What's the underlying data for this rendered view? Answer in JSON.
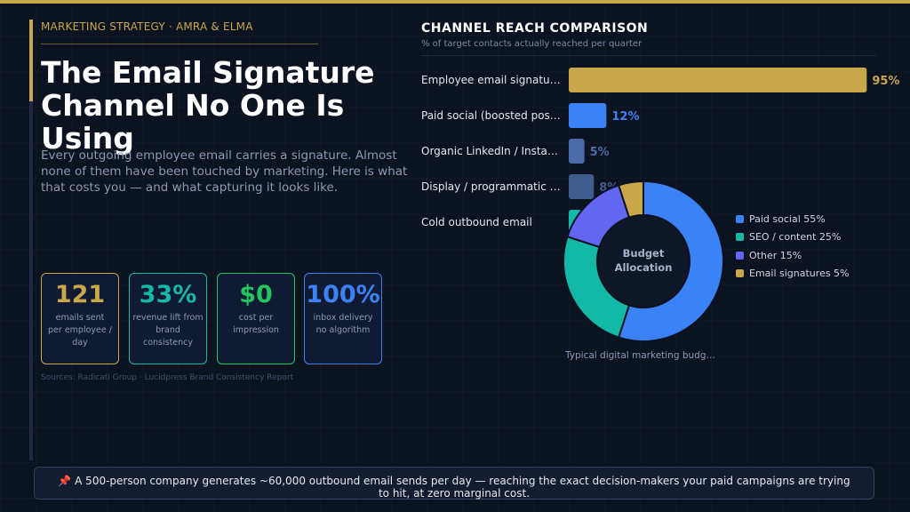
{
  "header": {
    "eyebrow": "MARKETING STRATEGY  ·  AMRA & ELMA"
  },
  "hero": {
    "title": "The Email Signature Channel No One Is Using",
    "lead": "Every outgoing employee email carries a signature. Almost none of them have been touched by marketing. Here is what that costs you — and what capturing it looks like."
  },
  "stats": [
    {
      "value": "121",
      "label": "emails sent\nper employee / day",
      "color": "#c9a84c"
    },
    {
      "value": "33%",
      "label": "revenue lift from\nbrand consistency",
      "color": "#14b8a6"
    },
    {
      "value": "$0",
      "label": "cost per\nimpression",
      "color": "#22c55e"
    },
    {
      "value": "100%",
      "label": "inbox delivery\nno algorithm",
      "color": "#3b82f6"
    }
  ],
  "sources": "Sources: Radicati Group  ·  Lucidpress Brand Consistency Report",
  "chart_data": [
    {
      "type": "bar",
      "orientation": "horizontal",
      "title": "CHANNEL REACH COMPARISON",
      "subtitle": "% of target contacts actually reached per quarter",
      "categories": [
        "Employee email signatu…",
        "Paid social (boosted pos…",
        "Organic LinkedIn / Insta…",
        "Display / programmatic …",
        "Cold outbound email"
      ],
      "values": [
        95,
        12,
        5,
        8,
        4
      ],
      "value_labels": [
        "95%",
        "12%",
        "5%",
        "8%",
        "4%"
      ],
      "colors": [
        "#c9a84c",
        "#3b82f6",
        "#4b6aa8",
        "#3f5c8c",
        "#14b8a6"
      ],
      "xlim": [
        0,
        100
      ],
      "grid": false
    },
    {
      "type": "pie",
      "style": "donut",
      "center_label": "Budget\nAllocation",
      "caption": "Typical digital marketing budg…",
      "slices": [
        {
          "label": "Paid social 55%",
          "value": 55,
          "color": "#3b82f6"
        },
        {
          "label": "SEO / content 25%",
          "value": 25,
          "color": "#14b8a6"
        },
        {
          "label": "Other 15%",
          "value": 15,
          "color": "#6366f1"
        },
        {
          "label": "Email signatures 5%",
          "value": 5,
          "color": "#c9a84c"
        }
      ],
      "legend": "right"
    }
  ],
  "callout": "📌 A 500-person company generates ~60,000 outbound email sends per day — reaching the exact decision-makers your paid campaigns are trying to hit, at zero marginal cost."
}
